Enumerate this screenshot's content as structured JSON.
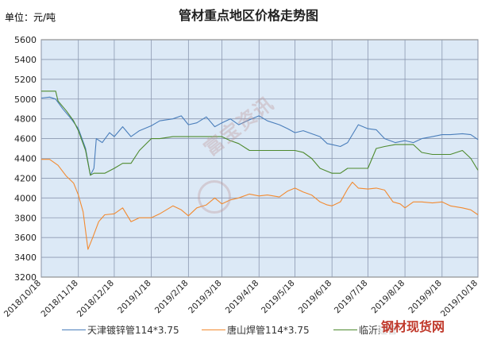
{
  "chart_data": {
    "type": "line",
    "title": "管材重点地区价格走势图",
    "unit_label": "单位：元/吨",
    "ylim": [
      3200,
      5600
    ],
    "yticks": [
      3200,
      3400,
      3600,
      3800,
      4000,
      4200,
      4400,
      4600,
      4800,
      5000,
      5200,
      5400,
      5600
    ],
    "xlim": [
      "2018/10/18",
      "2019/10/18"
    ],
    "xticks": [
      "2018/10/18",
      "2018/11/18",
      "2018/12/18",
      "2019/1/18",
      "2019/2/18",
      "2019/3/18",
      "2019/4/18",
      "2019/5/18",
      "2019/6/18",
      "2019/7/18",
      "2019/8/18",
      "2019/9/18",
      "2019/10/18"
    ],
    "grid": true,
    "legend_position": "bottom",
    "series": [
      {
        "name": "天津镀锌管114*3.75",
        "color": "#4a7ebb",
        "points": [
          [
            "2018/10/18",
            5010
          ],
          [
            "2018/10/25",
            5020
          ],
          [
            "2018/10/30",
            5000
          ],
          [
            "2018/11/5",
            4900
          ],
          [
            "2018/11/12",
            4800
          ],
          [
            "2018/11/18",
            4700
          ],
          [
            "2018/11/24",
            4500
          ],
          [
            "2018/11/28",
            4230
          ],
          [
            "2018/12/1",
            4300
          ],
          [
            "2018/12/3",
            4600
          ],
          [
            "2018/12/8",
            4560
          ],
          [
            "2018/12/14",
            4660
          ],
          [
            "2018/12/18",
            4620
          ],
          [
            "2018/12/25",
            4720
          ],
          [
            "2019/1/1",
            4620
          ],
          [
            "2019/1/8",
            4680
          ],
          [
            "2019/1/18",
            4730
          ],
          [
            "2019/1/25",
            4780
          ],
          [
            "2019/2/5",
            4800
          ],
          [
            "2019/2/12",
            4830
          ],
          [
            "2019/2/18",
            4740
          ],
          [
            "2019/2/25",
            4760
          ],
          [
            "2019/3/5",
            4820
          ],
          [
            "2019/3/12",
            4720
          ],
          [
            "2019/3/18",
            4760
          ],
          [
            "2019/3/25",
            4800
          ],
          [
            "2019/4/1",
            4740
          ],
          [
            "2019/4/10",
            4790
          ],
          [
            "2019/4/18",
            4830
          ],
          [
            "2019/4/25",
            4780
          ],
          [
            "2019/5/5",
            4740
          ],
          [
            "2019/5/12",
            4700
          ],
          [
            "2019/5/18",
            4660
          ],
          [
            "2019/5/25",
            4680
          ],
          [
            "2019/6/1",
            4650
          ],
          [
            "2019/6/8",
            4620
          ],
          [
            "2019/6/14",
            4550
          ],
          [
            "2019/6/18",
            4540
          ],
          [
            "2019/6/25",
            4520
          ],
          [
            "2019/7/1",
            4560
          ],
          [
            "2019/7/10",
            4740
          ],
          [
            "2019/7/18",
            4700
          ],
          [
            "2019/7/25",
            4690
          ],
          [
            "2019/8/1",
            4600
          ],
          [
            "2019/8/10",
            4560
          ],
          [
            "2019/8/18",
            4580
          ],
          [
            "2019/8/25",
            4560
          ],
          [
            "2019/9/1",
            4600
          ],
          [
            "2019/9/10",
            4620
          ],
          [
            "2019/9/18",
            4640
          ],
          [
            "2019/9/25",
            4640
          ],
          [
            "2019/10/5",
            4650
          ],
          [
            "2019/10/12",
            4640
          ],
          [
            "2019/10/18",
            4590
          ]
        ]
      },
      {
        "name": "唐山焊管114*3.75",
        "color": "#f28a30",
        "points": [
          [
            "2018/10/18",
            4390
          ],
          [
            "2018/10/25",
            4390
          ],
          [
            "2018/11/1",
            4330
          ],
          [
            "2018/11/8",
            4220
          ],
          [
            "2018/11/14",
            4150
          ],
          [
            "2018/11/18",
            4030
          ],
          [
            "2018/11/22",
            3860
          ],
          [
            "2018/11/26",
            3480
          ],
          [
            "2018/11/30",
            3600
          ],
          [
            "2018/12/5",
            3760
          ],
          [
            "2018/12/10",
            3830
          ],
          [
            "2018/12/18",
            3840
          ],
          [
            "2018/12/25",
            3900
          ],
          [
            "2019/1/1",
            3760
          ],
          [
            "2019/1/8",
            3800
          ],
          [
            "2019/1/18",
            3800
          ],
          [
            "2019/1/25",
            3840
          ],
          [
            "2019/2/5",
            3920
          ],
          [
            "2019/2/12",
            3880
          ],
          [
            "2019/2/18",
            3820
          ],
          [
            "2019/2/25",
            3900
          ],
          [
            "2019/3/5",
            3930
          ],
          [
            "2019/3/12",
            4000
          ],
          [
            "2019/3/18",
            3940
          ],
          [
            "2019/3/25",
            3980
          ],
          [
            "2019/4/1",
            4000
          ],
          [
            "2019/4/10",
            4040
          ],
          [
            "2019/4/18",
            4020
          ],
          [
            "2019/4/25",
            4030
          ],
          [
            "2019/5/5",
            4010
          ],
          [
            "2019/5/12",
            4070
          ],
          [
            "2019/5/18",
            4100
          ],
          [
            "2019/5/25",
            4060
          ],
          [
            "2019/6/1",
            4030
          ],
          [
            "2019/6/8",
            3960
          ],
          [
            "2019/6/14",
            3930
          ],
          [
            "2019/6/18",
            3920
          ],
          [
            "2019/6/25",
            3960
          ],
          [
            "2019/7/1",
            4090
          ],
          [
            "2019/7/5",
            4160
          ],
          [
            "2019/7/10",
            4100
          ],
          [
            "2019/7/18",
            4090
          ],
          [
            "2019/7/25",
            4100
          ],
          [
            "2019/8/1",
            4080
          ],
          [
            "2019/8/8",
            3960
          ],
          [
            "2019/8/14",
            3940
          ],
          [
            "2019/8/18",
            3900
          ],
          [
            "2019/8/25",
            3960
          ],
          [
            "2019/9/1",
            3960
          ],
          [
            "2019/9/10",
            3950
          ],
          [
            "2019/9/18",
            3960
          ],
          [
            "2019/9/25",
            3920
          ],
          [
            "2019/10/5",
            3900
          ],
          [
            "2019/10/12",
            3880
          ],
          [
            "2019/10/18",
            3830
          ]
        ]
      },
      {
        "name": "临沂建管",
        "color": "#4e8a2e",
        "points": [
          [
            "2018/10/18",
            5080
          ],
          [
            "2018/10/25",
            5080
          ],
          [
            "2018/10/30",
            5080
          ],
          [
            "2018/11/1",
            4980
          ],
          [
            "2018/11/8",
            4880
          ],
          [
            "2018/11/14",
            4780
          ],
          [
            "2018/11/18",
            4680
          ],
          [
            "2018/11/24",
            4480
          ],
          [
            "2018/11/28",
            4230
          ],
          [
            "2018/12/1",
            4250
          ],
          [
            "2018/12/10",
            4250
          ],
          [
            "2018/12/18",
            4300
          ],
          [
            "2018/12/25",
            4350
          ],
          [
            "2019/1/1",
            4350
          ],
          [
            "2019/1/8",
            4480
          ],
          [
            "2019/1/18",
            4600
          ],
          [
            "2019/1/25",
            4600
          ],
          [
            "2019/2/5",
            4620
          ],
          [
            "2019/2/18",
            4620
          ],
          [
            "2019/3/5",
            4620
          ],
          [
            "2019/3/18",
            4620
          ],
          [
            "2019/3/25",
            4580
          ],
          [
            "2019/4/1",
            4550
          ],
          [
            "2019/4/10",
            4480
          ],
          [
            "2019/4/18",
            4480
          ],
          [
            "2019/5/5",
            4480
          ],
          [
            "2019/5/18",
            4480
          ],
          [
            "2019/5/25",
            4460
          ],
          [
            "2019/6/1",
            4400
          ],
          [
            "2019/6/8",
            4300
          ],
          [
            "2019/6/18",
            4250
          ],
          [
            "2019/6/25",
            4250
          ],
          [
            "2019/7/1",
            4300
          ],
          [
            "2019/7/10",
            4300
          ],
          [
            "2019/7/18",
            4300
          ],
          [
            "2019/7/25",
            4500
          ],
          [
            "2019/8/1",
            4520
          ],
          [
            "2019/8/10",
            4540
          ],
          [
            "2019/8/18",
            4540
          ],
          [
            "2019/8/25",
            4540
          ],
          [
            "2019/9/1",
            4460
          ],
          [
            "2019/9/10",
            4440
          ],
          [
            "2019/9/18",
            4440
          ],
          [
            "2019/9/25",
            4440
          ],
          [
            "2019/10/5",
            4480
          ],
          [
            "2019/10/12",
            4400
          ],
          [
            "2019/10/18",
            4280
          ]
        ]
      }
    ]
  },
  "watermark": {
    "text": "富宝资讯"
  },
  "corner_logo": {
    "text": "钢材现货网"
  },
  "colors": {
    "plot_bg": "#dce9f6",
    "grid": "#8b98b0",
    "axis": "#7b7b7b"
  }
}
